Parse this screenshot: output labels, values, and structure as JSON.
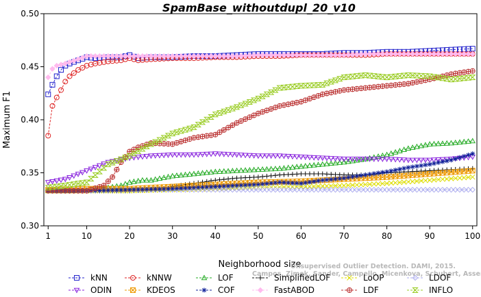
{
  "chart_data": {
    "type": "line",
    "title": "SpamBase_withoutdupl_20_v10",
    "xlabel": "Neighborhood size",
    "ylabel": "Maximum F1",
    "xlim": [
      0,
      101
    ],
    "ylim": [
      0.3,
      0.5
    ],
    "xticks": [
      1,
      10,
      20,
      30,
      40,
      50,
      60,
      70,
      80,
      90,
      100
    ],
    "yticks": [
      0.3,
      0.35,
      0.4,
      0.45,
      0.5
    ],
    "ytick_labels": [
      "0.30",
      "0.35",
      "0.40",
      "0.45",
      "0.50"
    ],
    "grid": false,
    "legend_position": "bottom",
    "watermark_lines": [
      "Unsupervised Outlier Detection. DAMI, 2015.",
      "Campos, Zimek, Sander, Campello, Micenkova, Schubert, Assent, Houle"
    ],
    "series": [
      {
        "name": "kNN",
        "color": "#2222cc",
        "marker": "square",
        "linestyle": "dashed",
        "points": [
          [
            1,
            0.424
          ],
          [
            2,
            0.433
          ],
          [
            3,
            0.441
          ],
          [
            4,
            0.447
          ],
          [
            5,
            0.451
          ],
          [
            6,
            0.453
          ],
          [
            8,
            0.456
          ],
          [
            10,
            0.459
          ],
          [
            12,
            0.458
          ],
          [
            15,
            0.459
          ],
          [
            18,
            0.459
          ],
          [
            20,
            0.461
          ],
          [
            22,
            0.458
          ],
          [
            25,
            0.459
          ],
          [
            30,
            0.459
          ],
          [
            35,
            0.46
          ],
          [
            40,
            0.46
          ],
          [
            45,
            0.461
          ],
          [
            50,
            0.462
          ],
          [
            55,
            0.462
          ],
          [
            60,
            0.462
          ],
          [
            65,
            0.462
          ],
          [
            70,
            0.463
          ],
          [
            75,
            0.463
          ],
          [
            80,
            0.464
          ],
          [
            85,
            0.464
          ],
          [
            90,
            0.465
          ],
          [
            95,
            0.466
          ],
          [
            100,
            0.467
          ]
        ]
      },
      {
        "name": "kNNW",
        "color": "#dd2222",
        "marker": "circle",
        "linestyle": "dashed",
        "points": [
          [
            1,
            0.385
          ],
          [
            2,
            0.413
          ],
          [
            3,
            0.421
          ],
          [
            4,
            0.428
          ],
          [
            5,
            0.436
          ],
          [
            6,
            0.441
          ],
          [
            8,
            0.447
          ],
          [
            10,
            0.451
          ],
          [
            12,
            0.453
          ],
          [
            15,
            0.455
          ],
          [
            18,
            0.456
          ],
          [
            20,
            0.458
          ],
          [
            22,
            0.456
          ],
          [
            25,
            0.457
          ],
          [
            30,
            0.458
          ],
          [
            35,
            0.458
          ],
          [
            40,
            0.459
          ],
          [
            45,
            0.459
          ],
          [
            50,
            0.46
          ],
          [
            55,
            0.46
          ],
          [
            60,
            0.461
          ],
          [
            65,
            0.461
          ],
          [
            70,
            0.461
          ],
          [
            75,
            0.461
          ],
          [
            80,
            0.462
          ],
          [
            85,
            0.462
          ],
          [
            90,
            0.462
          ],
          [
            95,
            0.462
          ],
          [
            100,
            0.462
          ]
        ]
      },
      {
        "name": "LOF",
        "color": "#22aa22",
        "marker": "triangle",
        "linestyle": "dashed",
        "points": [
          [
            1,
            0.333
          ],
          [
            5,
            0.333
          ],
          [
            10,
            0.334
          ],
          [
            15,
            0.336
          ],
          [
            18,
            0.338
          ],
          [
            20,
            0.341
          ],
          [
            23,
            0.343
          ],
          [
            25,
            0.343
          ],
          [
            30,
            0.347
          ],
          [
            35,
            0.349
          ],
          [
            40,
            0.351
          ],
          [
            45,
            0.352
          ],
          [
            50,
            0.353
          ],
          [
            55,
            0.354
          ],
          [
            60,
            0.356
          ],
          [
            65,
            0.358
          ],
          [
            70,
            0.36
          ],
          [
            75,
            0.363
          ],
          [
            80,
            0.367
          ],
          [
            85,
            0.373
          ],
          [
            90,
            0.377
          ],
          [
            95,
            0.378
          ],
          [
            100,
            0.38
          ]
        ]
      },
      {
        "name": "SimplifiedLOF",
        "color": "#111111",
        "marker": "plus",
        "linestyle": "dashed",
        "points": [
          [
            1,
            0.333
          ],
          [
            10,
            0.333
          ],
          [
            20,
            0.333
          ],
          [
            28,
            0.334
          ],
          [
            30,
            0.337
          ],
          [
            35,
            0.34
          ],
          [
            40,
            0.343
          ],
          [
            45,
            0.345
          ],
          [
            50,
            0.346
          ],
          [
            55,
            0.348
          ],
          [
            60,
            0.349
          ],
          [
            65,
            0.349
          ],
          [
            70,
            0.348
          ],
          [
            75,
            0.348
          ],
          [
            80,
            0.35
          ],
          [
            85,
            0.351
          ],
          [
            90,
            0.352
          ],
          [
            95,
            0.353
          ],
          [
            100,
            0.354
          ]
        ]
      },
      {
        "name": "LoOP",
        "color": "#dddd00",
        "marker": "x",
        "linestyle": "dashed",
        "points": [
          [
            1,
            0.333
          ],
          [
            20,
            0.333
          ],
          [
            30,
            0.334
          ],
          [
            40,
            0.335
          ],
          [
            50,
            0.336
          ],
          [
            60,
            0.337
          ],
          [
            70,
            0.338
          ],
          [
            80,
            0.34
          ],
          [
            90,
            0.343
          ],
          [
            100,
            0.346
          ]
        ]
      },
      {
        "name": "LDOF",
        "color": "#aaaaee",
        "marker": "diamond",
        "linestyle": "dashed",
        "points": [
          [
            1,
            0.334
          ],
          [
            10,
            0.334
          ],
          [
            20,
            0.334
          ],
          [
            30,
            0.334
          ],
          [
            40,
            0.334
          ],
          [
            50,
            0.334
          ],
          [
            60,
            0.334
          ],
          [
            70,
            0.334
          ],
          [
            80,
            0.334
          ],
          [
            90,
            0.334
          ],
          [
            100,
            0.334
          ]
        ]
      },
      {
        "name": "ODIN",
        "color": "#8822dd",
        "marker": "triangle-down",
        "linestyle": "dashed",
        "points": [
          [
            1,
            0.341
          ],
          [
            5,
            0.344
          ],
          [
            10,
            0.352
          ],
          [
            15,
            0.36
          ],
          [
            20,
            0.364
          ],
          [
            25,
            0.366
          ],
          [
            30,
            0.367
          ],
          [
            35,
            0.367
          ],
          [
            40,
            0.368
          ],
          [
            45,
            0.367
          ],
          [
            50,
            0.366
          ],
          [
            55,
            0.366
          ],
          [
            60,
            0.365
          ],
          [
            65,
            0.364
          ],
          [
            70,
            0.363
          ],
          [
            75,
            0.363
          ],
          [
            80,
            0.363
          ],
          [
            85,
            0.362
          ],
          [
            90,
            0.362
          ],
          [
            95,
            0.363
          ],
          [
            100,
            0.365
          ]
        ]
      },
      {
        "name": "KDEOS",
        "color": "#ee9900",
        "marker": "square-x",
        "linestyle": "dashed",
        "points": [
          [
            1,
            0.334
          ],
          [
            10,
            0.335
          ],
          [
            20,
            0.335
          ],
          [
            30,
            0.337
          ],
          [
            40,
            0.339
          ],
          [
            50,
            0.341
          ],
          [
            60,
            0.342
          ],
          [
            70,
            0.344
          ],
          [
            80,
            0.346
          ],
          [
            90,
            0.349
          ],
          [
            100,
            0.352
          ]
        ]
      },
      {
        "name": "COF",
        "color": "#112299",
        "marker": "star",
        "linestyle": "dashed",
        "points": [
          [
            1,
            0.333
          ],
          [
            10,
            0.333
          ],
          [
            20,
            0.334
          ],
          [
            30,
            0.335
          ],
          [
            40,
            0.337
          ],
          [
            50,
            0.339
          ],
          [
            55,
            0.341
          ],
          [
            60,
            0.34
          ],
          [
            65,
            0.343
          ],
          [
            70,
            0.345
          ],
          [
            75,
            0.348
          ],
          [
            80,
            0.351
          ],
          [
            85,
            0.355
          ],
          [
            90,
            0.358
          ],
          [
            95,
            0.362
          ],
          [
            100,
            0.368
          ]
        ]
      },
      {
        "name": "FastABOD",
        "color": "#ffbbee",
        "marker": "diamond-filled",
        "linestyle": "dashed",
        "points": [
          [
            1,
            0.44
          ],
          [
            2,
            0.448
          ],
          [
            3,
            0.451
          ],
          [
            5,
            0.453
          ],
          [
            8,
            0.457
          ],
          [
            10,
            0.46
          ],
          [
            15,
            0.46
          ],
          [
            20,
            0.46
          ],
          [
            25,
            0.46
          ],
          [
            30,
            0.46
          ],
          [
            35,
            0.46
          ],
          [
            40,
            0.46
          ],
          [
            45,
            0.46
          ],
          [
            50,
            0.461
          ],
          [
            55,
            0.461
          ],
          [
            60,
            0.461
          ],
          [
            65,
            0.461
          ],
          [
            70,
            0.461
          ],
          [
            75,
            0.462
          ],
          [
            80,
            0.462
          ],
          [
            85,
            0.462
          ],
          [
            90,
            0.462
          ],
          [
            95,
            0.462
          ],
          [
            100,
            0.462
          ]
        ]
      },
      {
        "name": "LDF",
        "color": "#bb3333",
        "marker": "circle-plus",
        "linestyle": "dashed",
        "points": [
          [
            1,
            0.333
          ],
          [
            10,
            0.333
          ],
          [
            14,
            0.338
          ],
          [
            16,
            0.346
          ],
          [
            18,
            0.36
          ],
          [
            20,
            0.37
          ],
          [
            22,
            0.374
          ],
          [
            25,
            0.378
          ],
          [
            30,
            0.377
          ],
          [
            35,
            0.383
          ],
          [
            40,
            0.386
          ],
          [
            45,
            0.397
          ],
          [
            50,
            0.406
          ],
          [
            55,
            0.413
          ],
          [
            60,
            0.417
          ],
          [
            65,
            0.424
          ],
          [
            70,
            0.428
          ],
          [
            75,
            0.43
          ],
          [
            80,
            0.432
          ],
          [
            85,
            0.434
          ],
          [
            90,
            0.438
          ],
          [
            95,
            0.443
          ],
          [
            100,
            0.446
          ]
        ]
      },
      {
        "name": "INFLO",
        "color": "#99cc22",
        "marker": "hourglass",
        "linestyle": "dashed",
        "points": [
          [
            1,
            0.336
          ],
          [
            5,
            0.338
          ],
          [
            10,
            0.341
          ],
          [
            15,
            0.358
          ],
          [
            20,
            0.366
          ],
          [
            25,
            0.377
          ],
          [
            30,
            0.387
          ],
          [
            35,
            0.393
          ],
          [
            40,
            0.405
          ],
          [
            45,
            0.412
          ],
          [
            50,
            0.42
          ],
          [
            55,
            0.43
          ],
          [
            60,
            0.432
          ],
          [
            65,
            0.433
          ],
          [
            70,
            0.44
          ],
          [
            75,
            0.442
          ],
          [
            80,
            0.44
          ],
          [
            85,
            0.442
          ],
          [
            90,
            0.441
          ],
          [
            95,
            0.438
          ],
          [
            100,
            0.44
          ]
        ]
      }
    ]
  }
}
